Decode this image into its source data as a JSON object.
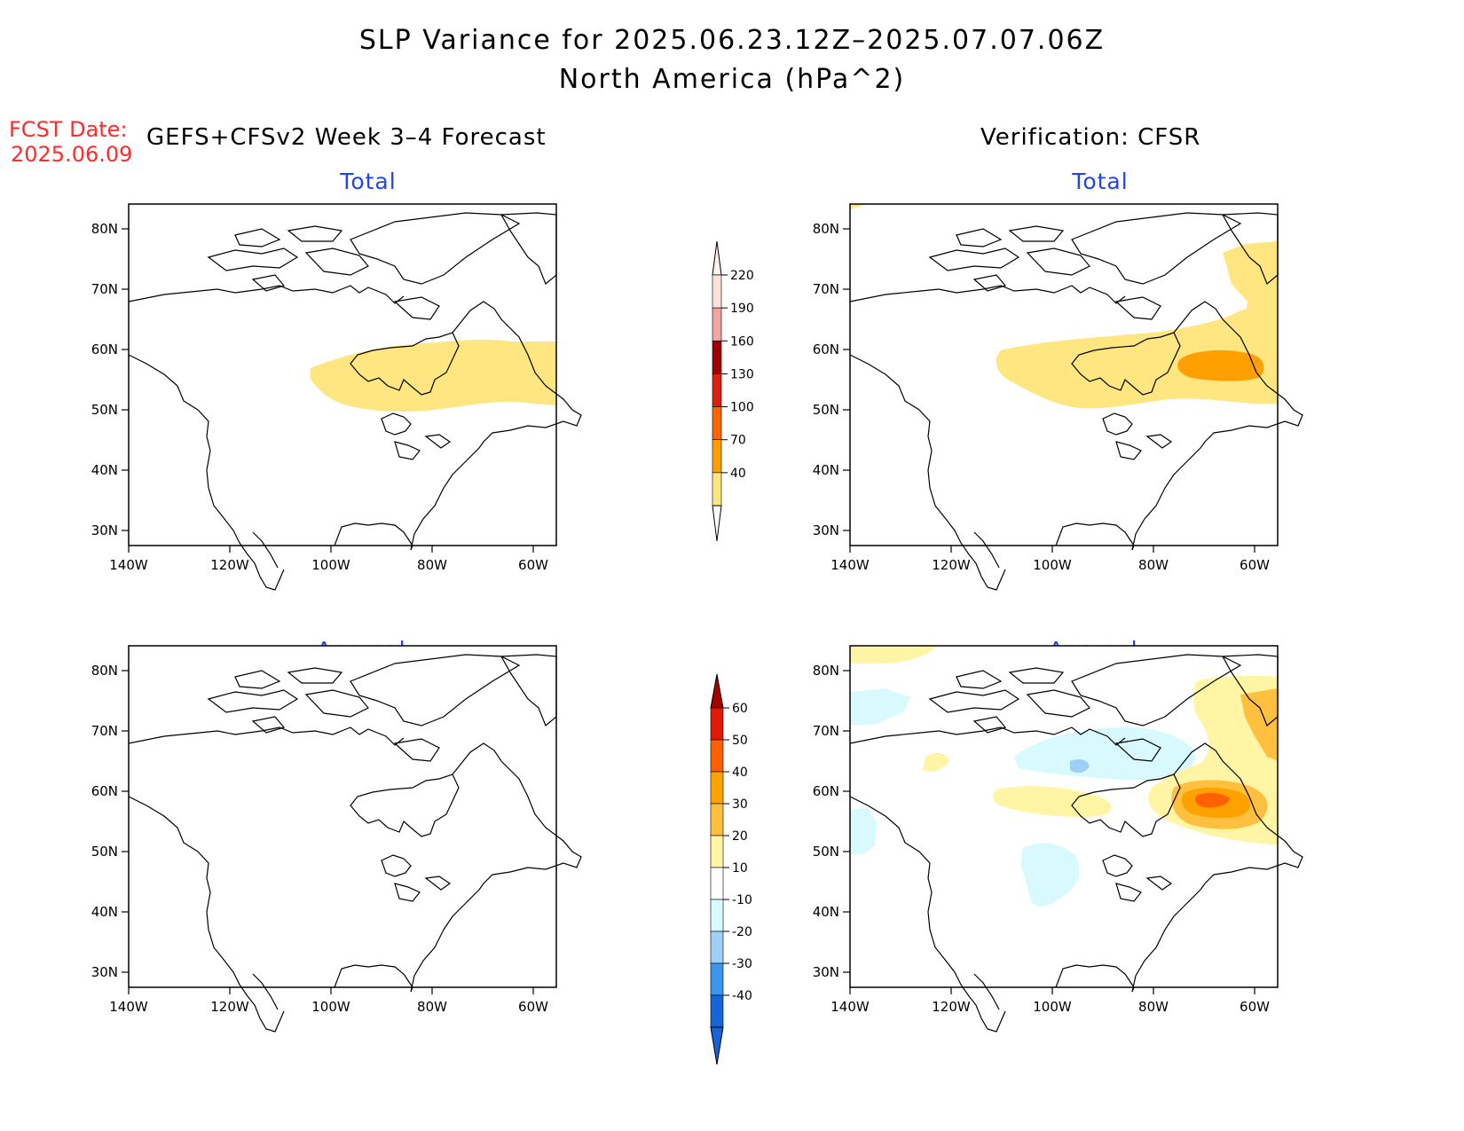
{
  "title": {
    "line1": "SLP Variance for 2025.06.23.12Z–2025.07.07.06Z",
    "line2": "North America (hPa^2)"
  },
  "fcst_date": {
    "label": "FCST Date:",
    "value": "2025.06.09"
  },
  "left_header": "GEFS+CFSv2 Week 3–4 Forecast",
  "right_header": "Verification: CFSR",
  "panel_titles": {
    "total": "Total",
    "anomaly": "Anomaly"
  },
  "axes": {
    "lat_ticks": [
      "80N",
      "70N",
      "60N",
      "50N",
      "40N",
      "30N"
    ],
    "lon_ticks": [
      "140W",
      "120W",
      "100W",
      "80W",
      "60W"
    ]
  },
  "colorbars": {
    "total": {
      "labels": [
        "220",
        "190",
        "160",
        "130",
        "100",
        "70",
        "40"
      ],
      "colors": [
        "#fce0dc",
        "#f4a3a3",
        "#a00000",
        "#dd1f0e",
        "#ff6600",
        "#ffa000",
        "#ffe680"
      ]
    },
    "anomaly": {
      "labels": [
        "60",
        "50",
        "40",
        "30",
        "20",
        "10",
        "-10",
        "-20",
        "-30",
        "-40"
      ],
      "colors": [
        "#a50000",
        "#e01808",
        "#ff6000",
        "#ffa200",
        "#ffc040",
        "#fff5a5",
        "#ffffff",
        "#d8faff",
        "#9ecff7",
        "#3c96f0",
        "#1565d8"
      ]
    }
  }
}
